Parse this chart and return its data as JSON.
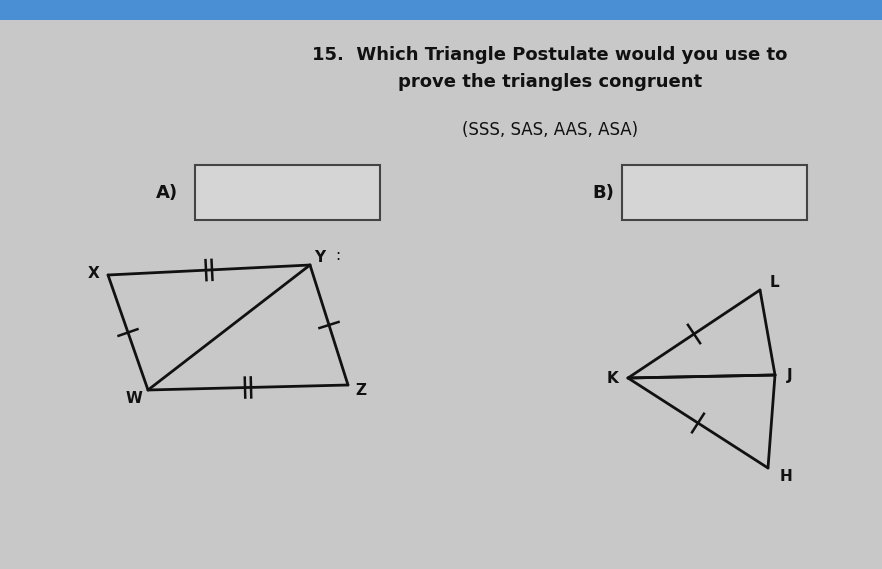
{
  "bg_color": "#c8c8c8",
  "header_color": "#4a8fd4",
  "title_number": "15.",
  "title_line1": "Which Triangle Postulate would you use to",
  "title_line2": "prove the triangles congruent",
  "subtitle": "(SSS, SAS, AAS, ASA)",
  "label_A": "A)",
  "label_B": "B)",
  "fig_width": 8.82,
  "fig_height": 5.69,
  "text_color": "#111111"
}
